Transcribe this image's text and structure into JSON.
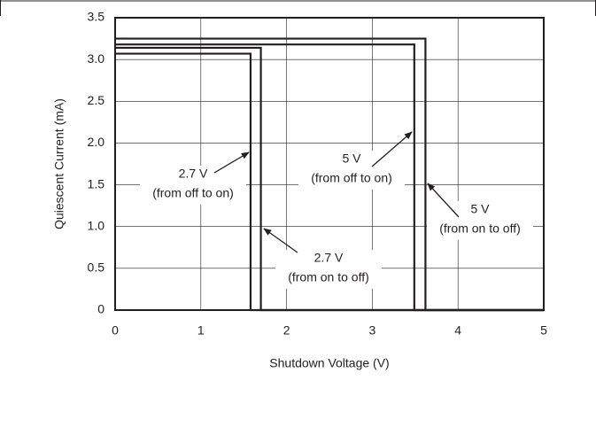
{
  "chart_data": {
    "type": "line",
    "xlabel": "Shutdown Voltage (V)",
    "ylabel": "Quiescent Current (mA)",
    "xlim": [
      0,
      5
    ],
    "ylim": [
      0,
      3.5
    ],
    "xticks": [
      0,
      1,
      2,
      3,
      4,
      5
    ],
    "yticks": [
      0,
      0.5,
      {
        "value": 1,
        "label": "1.0"
      },
      1.5,
      {
        "value": 2,
        "label": "2.0"
      },
      2.5,
      {
        "value": 3,
        "label": "3.0"
      },
      3.5
    ],
    "grid": true,
    "series": [
      {
        "color": "#231f20",
        "x": [
          0,
          1.58,
          1.58,
          5
        ],
        "values": [
          3.07,
          3.07,
          0,
          0
        ]
      },
      {
        "color": "#231f20",
        "x": [
          0,
          1.7,
          1.7,
          5
        ],
        "values": [
          3.14,
          3.14,
          0,
          0
        ]
      },
      {
        "color": "#231f20",
        "x": [
          0,
          3.49,
          3.49,
          5
        ],
        "values": [
          3.18,
          3.18,
          0,
          0
        ]
      },
      {
        "color": "#231f20",
        "x": [
          0,
          3.62,
          3.62,
          5
        ],
        "values": [
          3.25,
          3.25,
          0,
          0
        ]
      }
    ],
    "annotations": [
      {
        "lines": [
          "2.7 V",
          "(from off to on)"
        ]
      },
      {
        "lines": [
          "5 V",
          "(from off to on)"
        ]
      },
      {
        "lines": [
          "2.7 V",
          "(from on to off)"
        ]
      },
      {
        "lines": [
          "5 V",
          "(from on to off)"
        ]
      }
    ]
  }
}
